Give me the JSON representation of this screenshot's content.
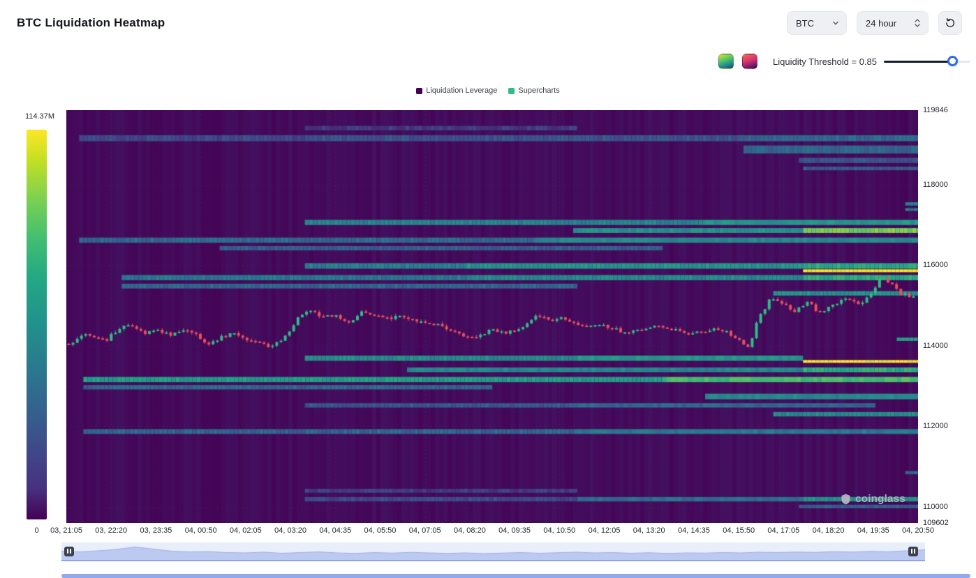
{
  "header": {
    "title": "BTC Liquidation Heatmap",
    "symbol_select": {
      "value": "BTC"
    },
    "interval_select": {
      "value": "24 hour"
    }
  },
  "threshold": {
    "label": "Liquidity Threshold = 0.85",
    "value": 0.85,
    "slider_position": 0.8
  },
  "legend": [
    {
      "label": "Liquidation Leverage",
      "color": "#440154"
    },
    {
      "label": "Supercharts",
      "color": "#2ebd85"
    }
  ],
  "colorbar": {
    "max_label": "114.37M",
    "min_label": "0"
  },
  "watermark": {
    "text": "coinglass"
  },
  "chart_data": {
    "type": "heatmap",
    "title": "BTC Liquidation Heatmap",
    "colormap": "viridis",
    "colorbar": {
      "min_label": "0",
      "max_label": "114.37M"
    },
    "y_axis": {
      "min": 109602,
      "max": 119846,
      "ticks": [
        118000,
        116000,
        114000,
        112000,
        110000
      ]
    },
    "x_axis": {
      "labels": [
        "03, 21:05",
        "03, 22:20",
        "03, 23:35",
        "04, 00:50",
        "04, 02:05",
        "04, 03:20",
        "04, 04:35",
        "04, 05:50",
        "04, 07:05",
        "04, 08:20",
        "04, 09:35",
        "04, 10:50",
        "04, 12:05",
        "04, 13:20",
        "04, 14:35",
        "04, 15:50",
        "04, 17:05",
        "04, 18:20",
        "04, 19:35",
        "04, 20:50"
      ]
    },
    "liquidation_bands": [
      {
        "price": 119400,
        "thickness": 110,
        "segments": [
          [
            0.28,
            0.6,
            0.18
          ]
        ]
      },
      {
        "price": 119150,
        "thickness": 150,
        "segments": [
          [
            0.015,
            0.28,
            0.22
          ],
          [
            0.28,
            0.79,
            0.26
          ],
          [
            0.79,
            1,
            0.34
          ]
        ]
      },
      {
        "price": 118870,
        "thickness": 200,
        "segments": [
          [
            0.795,
            1,
            0.32
          ]
        ]
      },
      {
        "price": 118600,
        "thickness": 130,
        "segments": [
          [
            0.86,
            1,
            0.26
          ]
        ]
      },
      {
        "price": 118400,
        "thickness": 90,
        "segments": [
          [
            0.865,
            1,
            0.28
          ]
        ]
      },
      {
        "price": 117520,
        "thickness": 80,
        "segments": [
          [
            0.985,
            1,
            0.45
          ]
        ]
      },
      {
        "price": 117380,
        "thickness": 70,
        "segments": [
          [
            0.985,
            1,
            0.4
          ]
        ]
      },
      {
        "price": 117060,
        "thickness": 130,
        "segments": [
          [
            0.28,
            0.75,
            0.45
          ],
          [
            0.75,
            1,
            0.52
          ]
        ]
      },
      {
        "price": 116860,
        "thickness": 120,
        "segments": [
          [
            0.595,
            0.865,
            0.5
          ],
          [
            0.865,
            1,
            0.78
          ]
        ]
      },
      {
        "price": 116620,
        "thickness": 130,
        "segments": [
          [
            0.015,
            0.55,
            0.34
          ],
          [
            0.55,
            1,
            0.46
          ]
        ]
      },
      {
        "price": 116420,
        "thickness": 110,
        "segments": [
          [
            0.18,
            0.7,
            0.3
          ]
        ]
      },
      {
        "price": 115980,
        "thickness": 140,
        "segments": [
          [
            0.28,
            0.47,
            0.42
          ],
          [
            0.47,
            0.865,
            0.52
          ],
          [
            0.865,
            1,
            0.6
          ]
        ]
      },
      {
        "price": 115860,
        "thickness": 70,
        "segments": [
          [
            0.865,
            1,
            1.0
          ]
        ]
      },
      {
        "price": 115690,
        "thickness": 130,
        "segments": [
          [
            0.065,
            0.47,
            0.4
          ],
          [
            0.47,
            0.865,
            0.48
          ],
          [
            0.865,
            1,
            0.62
          ]
        ]
      },
      {
        "price": 115480,
        "thickness": 120,
        "segments": [
          [
            0.065,
            0.6,
            0.33
          ]
        ]
      },
      {
        "price": 115300,
        "thickness": 110,
        "segments": [
          [
            0.83,
            1,
            0.5
          ]
        ]
      },
      {
        "price": 114160,
        "thickness": 80,
        "segments": [
          [
            0.975,
            1,
            0.55
          ]
        ]
      },
      {
        "price": 113690,
        "thickness": 130,
        "segments": [
          [
            0.28,
            0.6,
            0.48
          ],
          [
            0.6,
            0.865,
            0.52
          ]
        ]
      },
      {
        "price": 113610,
        "thickness": 70,
        "segments": [
          [
            0.865,
            1,
            1.0
          ]
        ]
      },
      {
        "price": 113400,
        "thickness": 120,
        "segments": [
          [
            0.4,
            0.865,
            0.45
          ],
          [
            0.865,
            1,
            0.62
          ]
        ]
      },
      {
        "price": 113160,
        "thickness": 130,
        "segments": [
          [
            0.02,
            0.7,
            0.55
          ],
          [
            0.7,
            1,
            0.68
          ]
        ]
      },
      {
        "price": 112970,
        "thickness": 110,
        "segments": [
          [
            0.02,
            0.5,
            0.33
          ]
        ]
      },
      {
        "price": 112740,
        "thickness": 140,
        "segments": [
          [
            0.75,
            1,
            0.46
          ]
        ]
      },
      {
        "price": 112520,
        "thickness": 110,
        "segments": [
          [
            0.28,
            0.6,
            0.28
          ],
          [
            0.6,
            0.95,
            0.33
          ]
        ]
      },
      {
        "price": 112300,
        "thickness": 110,
        "segments": [
          [
            0.83,
            1,
            0.48
          ]
        ]
      },
      {
        "price": 111870,
        "thickness": 120,
        "segments": [
          [
            0.02,
            0.6,
            0.33
          ],
          [
            0.6,
            1,
            0.4
          ]
        ]
      },
      {
        "price": 110850,
        "thickness": 80,
        "segments": [
          [
            0.985,
            1,
            0.35
          ]
        ]
      },
      {
        "price": 110400,
        "thickness": 100,
        "segments": [
          [
            0.28,
            0.6,
            0.18
          ]
        ]
      },
      {
        "price": 110190,
        "thickness": 110,
        "segments": [
          [
            0.28,
            0.6,
            0.22
          ],
          [
            0.6,
            0.865,
            0.35
          ],
          [
            0.865,
            1,
            0.5
          ]
        ]
      },
      {
        "price": 110010,
        "thickness": 90,
        "segments": [
          [
            0.86,
            1,
            0.3
          ]
        ]
      }
    ],
    "price_candles": {
      "up_color": "#2ebd85",
      "down_color": "#e8505b",
      "candle_count": 200,
      "anchors": [
        [
          0,
          114050
        ],
        [
          0.02,
          114300
        ],
        [
          0.045,
          114150
        ],
        [
          0.06,
          114450
        ],
        [
          0.075,
          114520
        ],
        [
          0.09,
          114300
        ],
        [
          0.105,
          114380
        ],
        [
          0.12,
          114280
        ],
        [
          0.135,
          114400
        ],
        [
          0.15,
          114300
        ],
        [
          0.165,
          114050
        ],
        [
          0.18,
          114200
        ],
        [
          0.195,
          114320
        ],
        [
          0.21,
          114180
        ],
        [
          0.225,
          114080
        ],
        [
          0.24,
          113980
        ],
        [
          0.255,
          114200
        ],
        [
          0.27,
          114650
        ],
        [
          0.285,
          114920
        ],
        [
          0.3,
          114680
        ],
        [
          0.315,
          114780
        ],
        [
          0.33,
          114520
        ],
        [
          0.345,
          114830
        ],
        [
          0.36,
          114780
        ],
        [
          0.375,
          114680
        ],
        [
          0.39,
          114720
        ],
        [
          0.405,
          114650
        ],
        [
          0.42,
          114600
        ],
        [
          0.435,
          114560
        ],
        [
          0.45,
          114420
        ],
        [
          0.465,
          114280
        ],
        [
          0.48,
          114180
        ],
        [
          0.5,
          114380
        ],
        [
          0.52,
          114320
        ],
        [
          0.54,
          114520
        ],
        [
          0.555,
          114780
        ],
        [
          0.57,
          114630
        ],
        [
          0.585,
          114700
        ],
        [
          0.6,
          114560
        ],
        [
          0.615,
          114470
        ],
        [
          0.63,
          114520
        ],
        [
          0.645,
          114420
        ],
        [
          0.66,
          114330
        ],
        [
          0.675,
          114380
        ],
        [
          0.69,
          114500
        ],
        [
          0.705,
          114420
        ],
        [
          0.72,
          114380
        ],
        [
          0.735,
          114300
        ],
        [
          0.75,
          114330
        ],
        [
          0.765,
          114400
        ],
        [
          0.78,
          114350
        ],
        [
          0.795,
          114100
        ],
        [
          0.805,
          113950
        ],
        [
          0.815,
          114600
        ],
        [
          0.83,
          115150
        ],
        [
          0.845,
          115050
        ],
        [
          0.86,
          114850
        ],
        [
          0.875,
          115080
        ],
        [
          0.89,
          114800
        ],
        [
          0.905,
          115000
        ],
        [
          0.92,
          115180
        ],
        [
          0.935,
          115020
        ],
        [
          0.95,
          115280
        ],
        [
          0.962,
          115780
        ],
        [
          0.972,
          115560
        ],
        [
          0.982,
          115320
        ],
        [
          1,
          115200
        ]
      ]
    },
    "navigator": {
      "values": [
        0.5,
        0.46,
        0.52,
        0.6,
        0.74,
        0.62,
        0.5,
        0.46,
        0.48,
        0.42,
        0.4,
        0.44,
        0.38,
        0.42,
        0.46,
        0.4,
        0.37,
        0.42,
        0.39,
        0.43,
        0.4,
        0.37,
        0.4,
        0.36,
        0.39,
        0.42,
        0.38,
        0.41,
        0.44,
        0.4,
        0.42,
        0.38,
        0.41,
        0.37,
        0.4,
        0.39,
        0.42,
        0.4,
        0.44,
        0.42,
        0.45,
        0.43,
        0.47,
        0.45,
        0.49,
        0.47,
        0.52,
        0.58
      ]
    }
  }
}
